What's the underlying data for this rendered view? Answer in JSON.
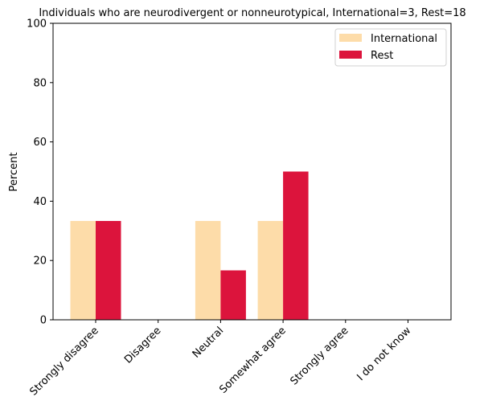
{
  "chart_data": {
    "type": "bar",
    "title": "Individuals who are neurodivergent or nonneurotypical, International=3, Rest=18",
    "xlabel": "",
    "ylabel": "Percent",
    "ylim": [
      0,
      100
    ],
    "yticks": [
      "0",
      "20",
      "40",
      "60",
      "80",
      "100"
    ],
    "categories": [
      "Strongly disagree",
      "Disagree",
      "Neutral",
      "Somewhat agree",
      "Strongly agree",
      "I do not know"
    ],
    "series": [
      {
        "name": "International",
        "color": "#FDDCA9",
        "values": [
          33.33,
          0,
          33.33,
          33.33,
          0,
          0
        ]
      },
      {
        "name": "Rest",
        "color": "#DC143C",
        "values": [
          33.33,
          0,
          16.67,
          50.0,
          0,
          0
        ]
      }
    ],
    "grid": false,
    "legend_position": "top-right"
  }
}
